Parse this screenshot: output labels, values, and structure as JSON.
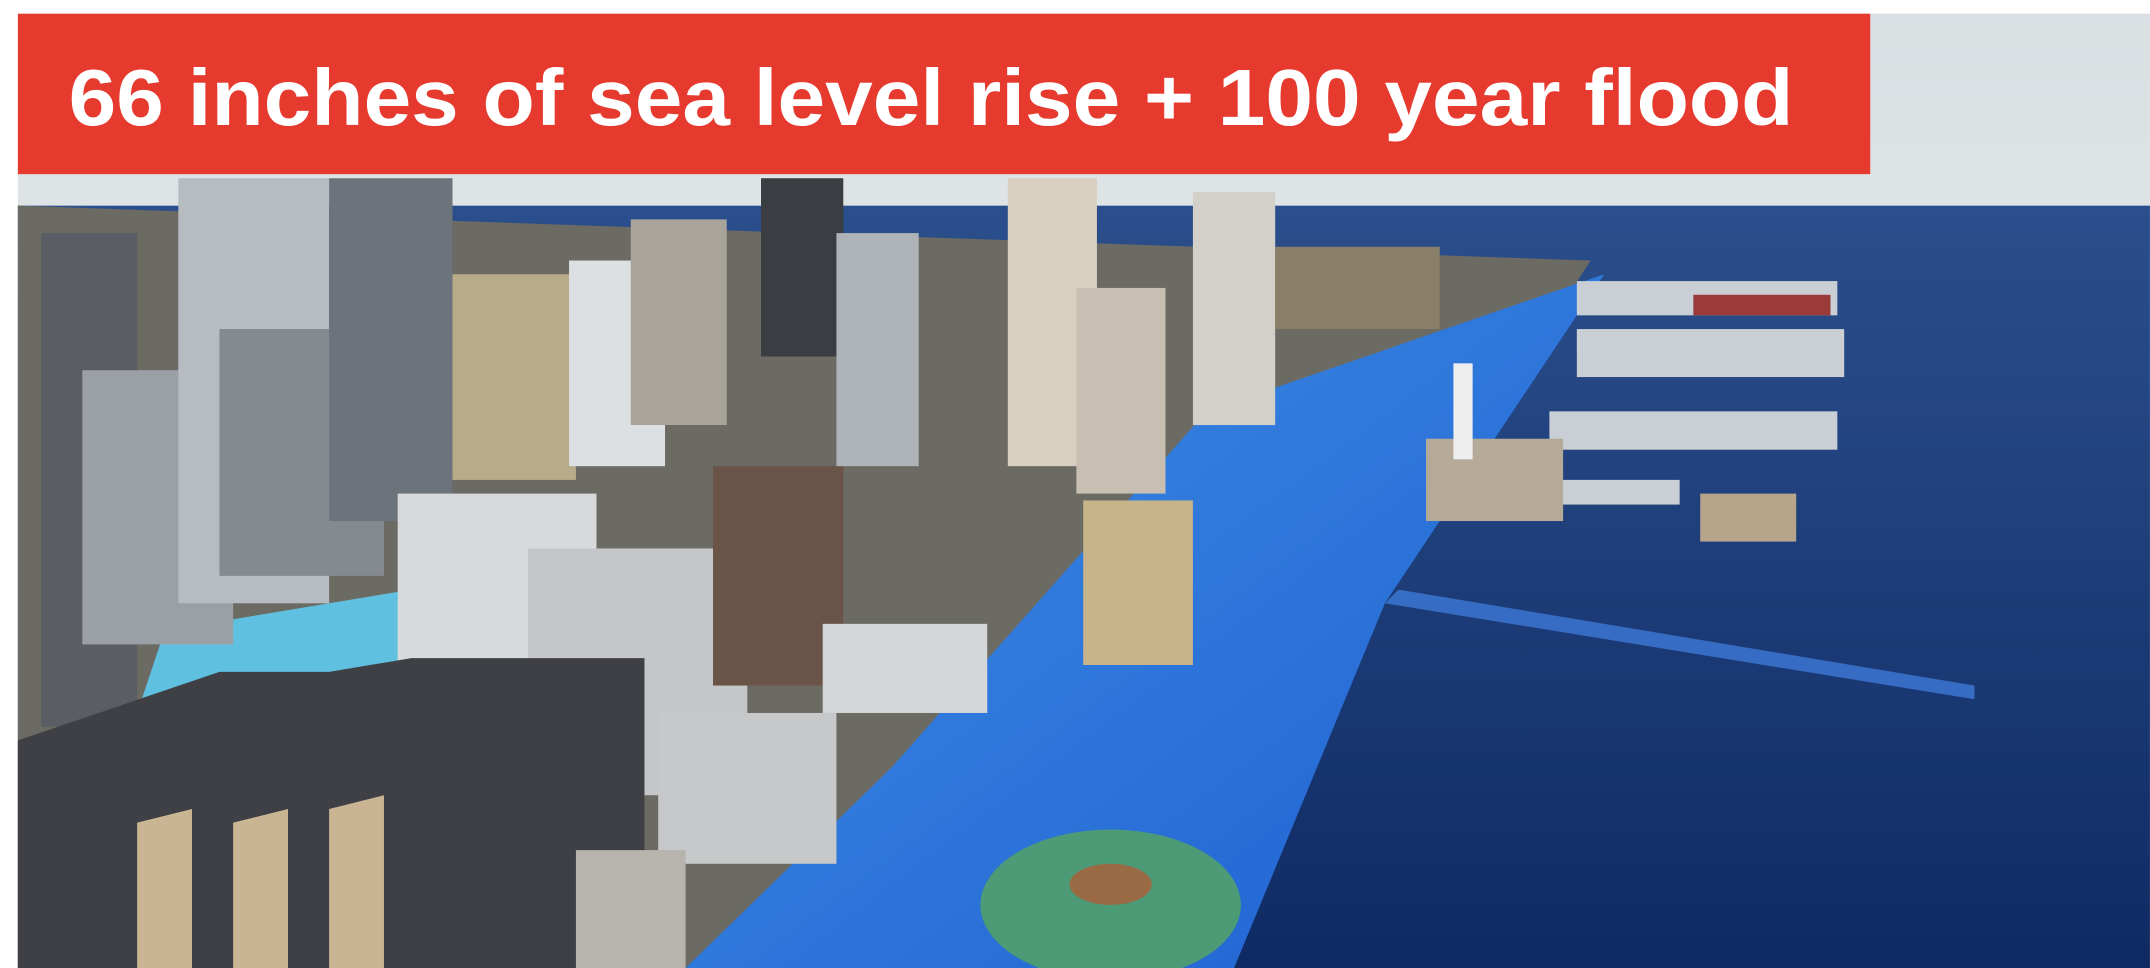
{
  "title": "66 inches of sea level rise + 100 year flood"
}
